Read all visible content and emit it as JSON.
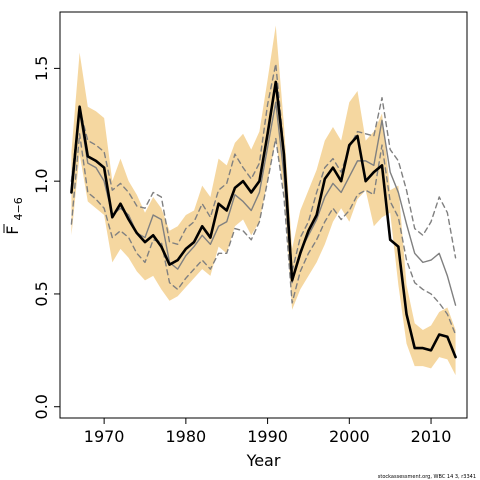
{
  "chart_data": {
    "type": "line",
    "xlabel": "Year",
    "ylabel": {
      "symbol": "F",
      "subscript": "4−6"
    },
    "xlim": [
      1964.6,
      2014.4
    ],
    "ylim": [
      -0.05,
      1.75
    ],
    "x_ticks": [
      1970,
      1980,
      1990,
      2000,
      2010
    ],
    "x_tick_labels": [
      "1970",
      "1980",
      "1990",
      "2000",
      "2010"
    ],
    "y_ticks": [
      0.0,
      0.5,
      1.0,
      1.5
    ],
    "y_tick_labels": [
      "0.0",
      "0.5",
      "1.0",
      "1.5"
    ],
    "grid": false,
    "legend": "none",
    "colors": {
      "band": "#f5d7a0",
      "estimate": "#000000",
      "previous": "#808080"
    },
    "x": [
      1966,
      1967,
      1968,
      1969,
      1970,
      1971,
      1972,
      1973,
      1974,
      1975,
      1976,
      1977,
      1978,
      1979,
      1980,
      1981,
      1982,
      1983,
      1984,
      1985,
      1986,
      1987,
      1988,
      1989,
      1990,
      1991,
      1992,
      1993,
      1994,
      1995,
      1996,
      1997,
      1998,
      1999,
      2000,
      2001,
      2002,
      2003,
      2004,
      2005,
      2006,
      2007,
      2008,
      2009,
      2010,
      2011,
      2012,
      2013
    ],
    "series": [
      {
        "role": "band",
        "style": "band",
        "lower": [
          0.76,
          1.12,
          0.91,
          0.88,
          0.85,
          0.64,
          0.7,
          0.66,
          0.6,
          0.56,
          0.58,
          0.52,
          0.47,
          0.49,
          0.53,
          0.57,
          0.61,
          0.58,
          0.71,
          0.68,
          0.8,
          0.83,
          0.76,
          0.82,
          1.0,
          1.18,
          0.96,
          0.43,
          0.52,
          0.58,
          0.64,
          0.72,
          0.82,
          0.88,
          0.82,
          0.92,
          0.96,
          0.8,
          0.84,
          0.86,
          0.54,
          0.28,
          0.18,
          0.18,
          0.17,
          0.22,
          0.21,
          0.14
        ],
        "upper": [
          1.13,
          1.57,
          1.33,
          1.31,
          1.28,
          1.0,
          1.1,
          1.0,
          0.94,
          0.86,
          0.93,
          0.88,
          0.78,
          0.8,
          0.85,
          0.87,
          0.98,
          0.93,
          1.1,
          1.07,
          1.17,
          1.21,
          1.14,
          1.22,
          1.45,
          1.69,
          1.25,
          0.7,
          0.87,
          0.96,
          1.05,
          1.18,
          1.24,
          1.18,
          1.35,
          1.4,
          1.18,
          1.22,
          1.3,
          0.96,
          0.98,
          0.54,
          0.37,
          0.34,
          0.36,
          0.42,
          0.44,
          0.34
        ]
      },
      {
        "role": "estimate",
        "style": "solid-thick",
        "values": [
          0.95,
          1.33,
          1.11,
          1.09,
          1.06,
          0.84,
          0.9,
          0.83,
          0.77,
          0.73,
          0.76,
          0.71,
          0.63,
          0.65,
          0.7,
          0.73,
          0.8,
          0.75,
          0.9,
          0.87,
          0.97,
          1.0,
          0.95,
          1.0,
          1.21,
          1.44,
          1.12,
          0.56,
          0.68,
          0.78,
          0.85,
          1.01,
          1.06,
          1.0,
          1.16,
          1.2,
          1.0,
          1.04,
          1.07,
          0.74,
          0.71,
          0.41,
          0.26,
          0.26,
          0.25,
          0.32,
          0.31,
          0.22
        ]
      },
      {
        "role": "previous",
        "style": "solid-thin",
        "values": [
          1.0,
          1.31,
          1.08,
          1.06,
          1.0,
          0.85,
          0.88,
          0.85,
          0.77,
          0.75,
          0.85,
          0.83,
          0.64,
          0.61,
          0.67,
          0.71,
          0.76,
          0.72,
          0.8,
          0.82,
          0.94,
          0.91,
          0.87,
          0.95,
          1.15,
          1.35,
          1.03,
          0.55,
          0.69,
          0.76,
          0.83,
          0.93,
          0.99,
          0.95,
          1.02,
          1.09,
          1.09,
          1.07,
          1.27,
          1.04,
          0.95,
          0.81,
          0.68,
          0.64,
          0.65,
          0.68,
          0.58,
          0.45
        ]
      },
      {
        "role": "previous-upper",
        "style": "dashed",
        "values": [
          1.0,
          1.32,
          1.18,
          1.16,
          1.13,
          0.96,
          0.99,
          0.95,
          0.89,
          0.88,
          0.95,
          0.93,
          0.73,
          0.72,
          0.79,
          0.82,
          0.9,
          0.84,
          0.96,
          0.99,
          1.12,
          1.06,
          1.01,
          1.08,
          1.34,
          1.52,
          1.14,
          0.6,
          0.75,
          0.82,
          0.95,
          1.06,
          1.1,
          1.04,
          1.15,
          1.22,
          1.21,
          1.2,
          1.37,
          1.14,
          1.09,
          0.96,
          0.79,
          0.76,
          0.82,
          0.93,
          0.86,
          0.66
        ]
      },
      {
        "role": "previous-lower",
        "style": "dashed",
        "values": [
          0.81,
          1.21,
          0.95,
          0.92,
          0.88,
          0.75,
          0.78,
          0.75,
          0.68,
          0.64,
          0.74,
          0.73,
          0.55,
          0.52,
          0.57,
          0.61,
          0.65,
          0.61,
          0.68,
          0.68,
          0.79,
          0.78,
          0.74,
          0.82,
          1.0,
          1.19,
          0.93,
          0.46,
          0.6,
          0.68,
          0.74,
          0.82,
          0.88,
          0.83,
          0.87,
          0.94,
          0.96,
          0.94,
          1.16,
          0.91,
          0.84,
          0.65,
          0.55,
          0.52,
          0.5,
          0.46,
          0.41,
          0.32
        ]
      }
    ],
    "credit": "stockassessment.org, WBC 14 3, r3341"
  }
}
